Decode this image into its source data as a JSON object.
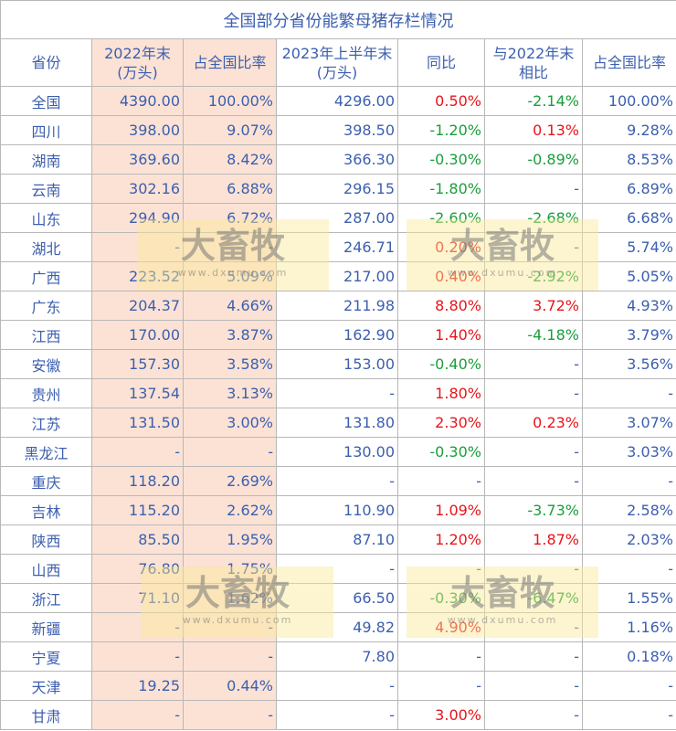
{
  "title": "全国部分省份能繁母猪存栏情况",
  "headers": [
    "省份",
    "2022年末(万头)",
    "占全国比率",
    "2023年上半年末(万头)",
    "同比",
    "与2022年末相比",
    "占全国比率"
  ],
  "rows": [
    [
      "全国",
      "4390.00",
      "100.00%",
      "4296.00",
      "0.50%",
      "-2.14%",
      "100.00%"
    ],
    [
      "四川",
      "398.00",
      "9.07%",
      "398.50",
      "-1.20%",
      "0.13%",
      "9.28%"
    ],
    [
      "湖南",
      "369.60",
      "8.42%",
      "366.30",
      "-0.30%",
      "-0.89%",
      "8.53%"
    ],
    [
      "云南",
      "302.16",
      "6.88%",
      "296.15",
      "-1.80%",
      "-",
      "6.89%"
    ],
    [
      "山东",
      "294.90",
      "6.72%",
      "287.00",
      "-2.60%",
      "-2.68%",
      "6.68%"
    ],
    [
      "湖北",
      "-",
      "-",
      "246.71",
      "0.20%",
      "-",
      "5.74%"
    ],
    [
      "广西",
      "223.52",
      "5.09%",
      "217.00",
      "0.40%",
      "-2.92%",
      "5.05%"
    ],
    [
      "广东",
      "204.37",
      "4.66%",
      "211.98",
      "8.80%",
      "3.72%",
      "4.93%"
    ],
    [
      "江西",
      "170.00",
      "3.87%",
      "162.90",
      "1.40%",
      "-4.18%",
      "3.79%"
    ],
    [
      "安徽",
      "157.30",
      "3.58%",
      "153.00",
      "-0.40%",
      "-",
      "3.56%"
    ],
    [
      "贵州",
      "137.54",
      "3.13%",
      "-",
      "1.80%",
      "-",
      "-"
    ],
    [
      "江苏",
      "131.50",
      "3.00%",
      "131.80",
      "2.30%",
      "0.23%",
      "3.07%"
    ],
    [
      "黑龙江",
      "-",
      "-",
      "130.00",
      "-0.30%",
      "-",
      "3.03%"
    ],
    [
      "重庆",
      "118.20",
      "2.69%",
      "-",
      "-",
      "-",
      "-"
    ],
    [
      "吉林",
      "115.20",
      "2.62%",
      "110.90",
      "1.09%",
      "-3.73%",
      "2.58%"
    ],
    [
      "陕西",
      "85.50",
      "1.95%",
      "87.10",
      "1.20%",
      "1.87%",
      "2.03%"
    ],
    [
      "山西",
      "76.80",
      "1.75%",
      "-",
      "-",
      "-",
      "-"
    ],
    [
      "浙江",
      "71.10",
      "1.62%",
      "66.50",
      "-0.30%",
      "-6.47%",
      "1.55%"
    ],
    [
      "新疆",
      "-",
      "-",
      "49.82",
      "4.90%",
      "-",
      "1.16%"
    ],
    [
      "宁夏",
      "-",
      "-",
      "7.80",
      "-",
      "-",
      "0.18%"
    ],
    [
      "天津",
      "19.25",
      "0.44%",
      "-",
      "-",
      "-",
      "-"
    ],
    [
      "甘肃",
      "-",
      "-",
      "-",
      "3.00%",
      "-",
      "-"
    ]
  ],
  "watermark": {
    "text": "大畜牧",
    "url": "www.dxumu.com"
  }
}
